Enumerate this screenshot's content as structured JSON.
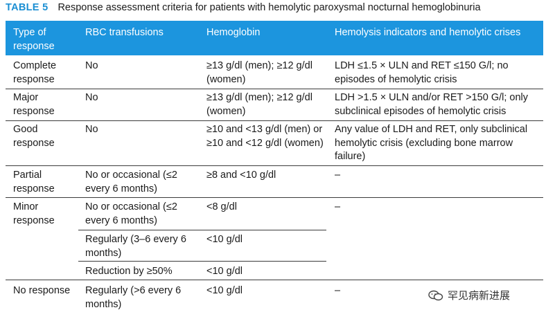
{
  "caption": {
    "label": "TABLE 5",
    "title": "Response assessment criteria for patients with hemolytic paroxysmal nocturnal hemoglobinuria"
  },
  "table": {
    "headers": {
      "type": "Type of response",
      "rbc": "RBC transfusions",
      "hb": "Hemoglobin",
      "hemolysis": "Hemolysis indicators and hemolytic crises"
    },
    "rows": {
      "complete": {
        "type": "Complete response",
        "rbc": "No",
        "hb": "≥13 g/dl (men); ≥12 g/dl (women)",
        "hemolysis": "LDH ≤1.5 × ULN and RET ≤150 G/l; no episodes of hemolytic crisis"
      },
      "major": {
        "type": "Major response",
        "rbc": "No",
        "hb": "≥13 g/dl (men); ≥12 g/dl (women)",
        "hemolysis": "LDH >1.5 × ULN and/or RET >150 G/l; only subclinical episodes of hemolytic crisis"
      },
      "good": {
        "type": "Good response",
        "rbc": "No",
        "hb": "≥10 and <13 g/dl (men) or ≥10 and <12 g/dl (women)",
        "hemolysis": "Any value of LDH and RET, only subclinical hemolytic crisis (excluding bone marrow failure)"
      },
      "partial": {
        "type": "Partial response",
        "rbc": "No or occasional (≤2 every 6 months)",
        "hb": "≥8 and <10 g/dl",
        "hemolysis": "–"
      },
      "minor": {
        "type": "Minor response",
        "hemolysis": "–",
        "sub": [
          {
            "rbc": "No or occasional (≤2 every 6 months)",
            "hb": "<8 g/dl"
          },
          {
            "rbc": "Regularly (3–6 every 6 months)",
            "hb": "<10 g/dl"
          },
          {
            "rbc": "Reduction by ≥50%",
            "hb": "<10 g/dl"
          }
        ]
      },
      "none": {
        "type": "No response",
        "rbc": "Regularly (>6 every 6 months)",
        "hb": "<10 g/dl",
        "hemolysis": "–"
      }
    }
  },
  "watermark": {
    "text": "罕见病新进展",
    "icon": "wechat-icon"
  }
}
